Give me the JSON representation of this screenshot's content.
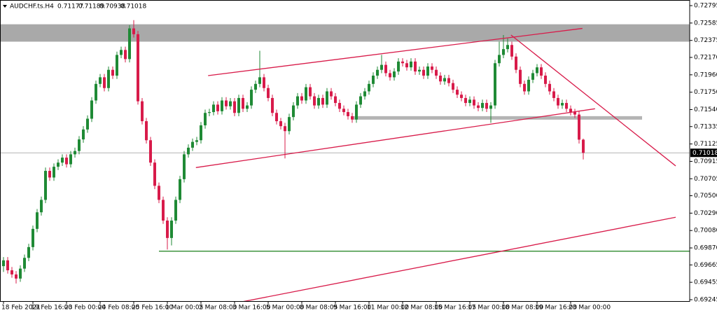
{
  "chart_data": {
    "type": "candlestick",
    "symbol": "AUDCHF.ts.H4",
    "up_color": "#1f8a35",
    "down_color": "#d81b4a",
    "line_color": "#d81b4a",
    "ylim": [
      0.69228,
      0.72863
    ],
    "yticks": [
      0.72795,
      0.72585,
      0.72375,
      {
        "value": 0.7217,
        "label": "0.72170"
      },
      {
        "value": 0.7196,
        "label": "0.71960"
      },
      {
        "value": 0.7175,
        "label": "0.71750"
      },
      {
        "value": 0.7154,
        "label": "0.71540"
      },
      0.71335,
      0.71125,
      0.70915,
      0.70705,
      {
        "value": 0.705,
        "label": "0.70500"
      },
      {
        "value": 0.7029,
        "label": "0.70290"
      },
      {
        "value": 0.7008,
        "label": "0.70080"
      },
      {
        "value": 0.6987,
        "label": "0.69870"
      },
      0.69665,
      0.69455,
      0.69245
    ],
    "categories": [
      "18 Feb 2021",
      null,
      null,
      null,
      null,
      null,
      null,
      "19 Feb 16:00",
      null,
      null,
      null,
      null,
      null,
      null,
      null,
      "23 Feb 00:00",
      null,
      null,
      null,
      null,
      null,
      null,
      null,
      "24 Feb 08:00",
      null,
      null,
      null,
      null,
      null,
      null,
      null,
      "25 Feb 16:00",
      null,
      null,
      null,
      null,
      null,
      null,
      null,
      "1 Mar 00:05",
      null,
      null,
      null,
      null,
      null,
      null,
      null,
      "2 Mar 08:00",
      null,
      null,
      null,
      null,
      null,
      null,
      null,
      "3 Mar 16:00",
      null,
      null,
      null,
      null,
      null,
      null,
      null,
      "5 Mar 00:00",
      null,
      null,
      null,
      null,
      null,
      null,
      null,
      "8 Mar 08:05",
      null,
      null,
      null,
      null,
      null,
      null,
      null,
      "9 Mar 16:00",
      null,
      null,
      null,
      null,
      null,
      null,
      null,
      "11 Mar 00:00",
      null,
      null,
      null,
      null,
      null,
      null,
      null,
      "12 Mar 08:00",
      null,
      null,
      null,
      null,
      null,
      null,
      null,
      "15 Mar 16:05",
      null,
      null,
      null,
      null,
      null,
      null,
      null,
      "17 Mar 00:00",
      null,
      null,
      null,
      null,
      null,
      null,
      null,
      "18 Mar 08:00",
      null,
      null,
      null,
      null,
      null,
      null,
      null,
      "19 Mar 16:00",
      null,
      null,
      null,
      null,
      null,
      null,
      null,
      "23 Mar 00:00",
      null,
      null,
      null
    ],
    "ohlc": [
      [
        0.6965,
        0.6976,
        0.6958,
        0.6972
      ],
      [
        0.6972,
        0.6976,
        0.6956,
        0.696
      ],
      [
        0.696,
        0.6964,
        0.6951,
        0.6955
      ],
      [
        0.6955,
        0.6959,
        0.6944,
        0.695
      ],
      [
        0.695,
        0.6966,
        0.6946,
        0.6962
      ],
      [
        0.6962,
        0.6979,
        0.6958,
        0.6975
      ],
      [
        0.6975,
        0.6992,
        0.6971,
        0.6988
      ],
      [
        0.6988,
        0.7014,
        0.6984,
        0.701
      ],
      [
        0.701,
        0.7034,
        0.7006,
        0.703
      ],
      [
        0.703,
        0.7049,
        0.7026,
        0.7045
      ],
      [
        0.7045,
        0.7084,
        0.7041,
        0.708
      ],
      [
        0.708,
        0.7084,
        0.7068,
        0.7072
      ],
      [
        0.7072,
        0.7089,
        0.7068,
        0.7085
      ],
      [
        0.7085,
        0.7094,
        0.7081,
        0.709
      ],
      [
        0.709,
        0.71,
        0.7086,
        0.7096
      ],
      [
        0.7096,
        0.71,
        0.7084,
        0.7088
      ],
      [
        0.7088,
        0.7104,
        0.7084,
        0.71
      ],
      [
        0.71,
        0.7108,
        0.7096,
        0.7104
      ],
      [
        0.7104,
        0.7122,
        0.71,
        0.7118
      ],
      [
        0.7118,
        0.7134,
        0.7114,
        0.713
      ],
      [
        0.713,
        0.7147,
        0.7126,
        0.7143
      ],
      [
        0.7143,
        0.7169,
        0.7139,
        0.7165
      ],
      [
        0.7165,
        0.7189,
        0.7161,
        0.7185
      ],
      [
        0.7185,
        0.7197,
        0.7181,
        0.7193
      ],
      [
        0.7193,
        0.7197,
        0.7176,
        0.718
      ],
      [
        0.718,
        0.7206,
        0.7176,
        0.7202
      ],
      [
        0.7202,
        0.7206,
        0.7191,
        0.7195
      ],
      [
        0.7195,
        0.7224,
        0.7191,
        0.722
      ],
      [
        0.722,
        0.723,
        0.7216,
        0.7226
      ],
      [
        0.7226,
        0.723,
        0.7211,
        0.7215
      ],
      [
        0.7215,
        0.7256,
        0.7211,
        0.7252
      ],
      [
        0.7252,
        0.7262,
        0.7241,
        0.7245
      ],
      [
        0.7245,
        0.7249,
        0.716,
        0.7164
      ],
      [
        0.7164,
        0.7168,
        0.7136,
        0.714
      ],
      [
        0.714,
        0.7144,
        0.7113,
        0.7117
      ],
      [
        0.7117,
        0.7121,
        0.7086,
        0.709
      ],
      [
        0.709,
        0.7094,
        0.7058,
        0.7062
      ],
      [
        0.7062,
        0.7066,
        0.7041,
        0.7045
      ],
      [
        0.7045,
        0.7049,
        0.7016,
        0.702
      ],
      [
        0.702,
        0.7024,
        0.6985,
        0.6999
      ],
      [
        0.6999,
        0.7024,
        0.699,
        0.702
      ],
      [
        0.702,
        0.7049,
        0.7016,
        0.7045
      ],
      [
        0.7045,
        0.7074,
        0.7041,
        0.707
      ],
      [
        0.707,
        0.7104,
        0.7066,
        0.71
      ],
      [
        0.71,
        0.7112,
        0.7096,
        0.7108
      ],
      [
        0.7108,
        0.7119,
        0.7104,
        0.7115
      ],
      [
        0.7115,
        0.7121,
        0.7111,
        0.7117
      ],
      [
        0.7117,
        0.7139,
        0.7113,
        0.7135
      ],
      [
        0.7135,
        0.7154,
        0.7131,
        0.715
      ],
      [
        0.715,
        0.7155,
        0.7146,
        0.7151
      ],
      [
        0.7151,
        0.7164,
        0.7147,
        0.716
      ],
      [
        0.716,
        0.7164,
        0.7148,
        0.7152
      ],
      [
        0.7152,
        0.7169,
        0.7148,
        0.7165
      ],
      [
        0.7165,
        0.7169,
        0.7154,
        0.7158
      ],
      [
        0.7158,
        0.7168,
        0.7154,
        0.7164
      ],
      [
        0.7164,
        0.7168,
        0.7146,
        0.715
      ],
      [
        0.715,
        0.7172,
        0.7146,
        0.7168
      ],
      [
        0.7168,
        0.7172,
        0.7151,
        0.7155
      ],
      [
        0.7155,
        0.7163,
        0.7151,
        0.7159
      ],
      [
        0.7159,
        0.7182,
        0.7155,
        0.7178
      ],
      [
        0.7178,
        0.7189,
        0.7174,
        0.7185
      ],
      [
        0.7185,
        0.7225,
        0.7181,
        0.7193
      ],
      [
        0.7193,
        0.7197,
        0.7176,
        0.718
      ],
      [
        0.718,
        0.7184,
        0.7164,
        0.7168
      ],
      [
        0.7168,
        0.7172,
        0.7146,
        0.715
      ],
      [
        0.715,
        0.7154,
        0.7136,
        0.714
      ],
      [
        0.714,
        0.7144,
        0.713,
        0.7134
      ],
      [
        0.7134,
        0.7138,
        0.7095,
        0.7128
      ],
      [
        0.7128,
        0.7149,
        0.7124,
        0.7145
      ],
      [
        0.7145,
        0.7163,
        0.7141,
        0.7159
      ],
      [
        0.7159,
        0.7174,
        0.7155,
        0.717
      ],
      [
        0.717,
        0.7174,
        0.7161,
        0.7165
      ],
      [
        0.7165,
        0.7185,
        0.7161,
        0.7181
      ],
      [
        0.7181,
        0.7185,
        0.7166,
        0.717
      ],
      [
        0.717,
        0.7174,
        0.7155,
        0.7159
      ],
      [
        0.7159,
        0.7172,
        0.7155,
        0.7168
      ],
      [
        0.7168,
        0.7172,
        0.7156,
        0.716
      ],
      [
        0.716,
        0.718,
        0.7156,
        0.7176
      ],
      [
        0.7176,
        0.718,
        0.7166,
        0.717
      ],
      [
        0.717,
        0.7174,
        0.7158,
        0.7162
      ],
      [
        0.7162,
        0.7166,
        0.7151,
        0.7155
      ],
      [
        0.7155,
        0.7159,
        0.7147,
        0.7151
      ],
      [
        0.7151,
        0.7155,
        0.7142,
        0.7146
      ],
      [
        0.7146,
        0.715,
        0.7138,
        0.7142
      ],
      [
        0.7142,
        0.7164,
        0.7138,
        0.716
      ],
      [
        0.716,
        0.7174,
        0.7156,
        0.717
      ],
      [
        0.717,
        0.718,
        0.7166,
        0.7176
      ],
      [
        0.7176,
        0.7189,
        0.7172,
        0.7185
      ],
      [
        0.7185,
        0.7199,
        0.7181,
        0.7195
      ],
      [
        0.7195,
        0.7206,
        0.7191,
        0.7202
      ],
      [
        0.7202,
        0.722,
        0.7198,
        0.7208
      ],
      [
        0.7208,
        0.7212,
        0.7194,
        0.7198
      ],
      [
        0.7198,
        0.7202,
        0.7189,
        0.7193
      ],
      [
        0.7193,
        0.7204,
        0.7189,
        0.72
      ],
      [
        0.72,
        0.7216,
        0.7196,
        0.7212
      ],
      [
        0.7212,
        0.7216,
        0.7206,
        0.721
      ],
      [
        0.721,
        0.7214,
        0.7201,
        0.7205
      ],
      [
        0.7205,
        0.7216,
        0.7201,
        0.7212
      ],
      [
        0.7212,
        0.7216,
        0.7196,
        0.72
      ],
      [
        0.72,
        0.7206,
        0.7196,
        0.7202
      ],
      [
        0.7202,
        0.7206,
        0.7191,
        0.7195
      ],
      [
        0.7195,
        0.721,
        0.7191,
        0.7206
      ],
      [
        0.7206,
        0.721,
        0.7198,
        0.7202
      ],
      [
        0.7202,
        0.7206,
        0.7191,
        0.7195
      ],
      [
        0.7195,
        0.7199,
        0.7184,
        0.7188
      ],
      [
        0.7188,
        0.7196,
        0.7184,
        0.7192
      ],
      [
        0.7192,
        0.7196,
        0.7182,
        0.7186
      ],
      [
        0.7186,
        0.719,
        0.7174,
        0.7178
      ],
      [
        0.7178,
        0.7182,
        0.7168,
        0.7172
      ],
      [
        0.7172,
        0.7176,
        0.7164,
        0.7168
      ],
      [
        0.7168,
        0.7172,
        0.7158,
        0.7162
      ],
      [
        0.7162,
        0.717,
        0.7158,
        0.7166
      ],
      [
        0.7166,
        0.717,
        0.7155,
        0.7159
      ],
      [
        0.7159,
        0.7163,
        0.7152,
        0.7156
      ],
      [
        0.7156,
        0.7166,
        0.7152,
        0.7162
      ],
      [
        0.7162,
        0.7166,
        0.7151,
        0.7155
      ],
      [
        0.7155,
        0.7163,
        0.7138,
        0.7159
      ],
      [
        0.7159,
        0.7214,
        0.7155,
        0.721
      ],
      [
        0.721,
        0.7236,
        0.7206,
        0.722
      ],
      [
        0.722,
        0.7244,
        0.7216,
        0.7227
      ],
      [
        0.7227,
        0.724,
        0.7223,
        0.7232
      ],
      [
        0.7232,
        0.7236,
        0.7214,
        0.7218
      ],
      [
        0.7218,
        0.7222,
        0.7198,
        0.7202
      ],
      [
        0.7202,
        0.7206,
        0.7181,
        0.7185
      ],
      [
        0.7185,
        0.7189,
        0.7172,
        0.7176
      ],
      [
        0.7176,
        0.7194,
        0.7172,
        0.719
      ],
      [
        0.719,
        0.7202,
        0.7186,
        0.7198
      ],
      [
        0.7198,
        0.7209,
        0.7194,
        0.7205
      ],
      [
        0.7205,
        0.7209,
        0.7191,
        0.7195
      ],
      [
        0.7195,
        0.7199,
        0.7181,
        0.7185
      ],
      [
        0.7185,
        0.7189,
        0.7172,
        0.7176
      ],
      [
        0.7176,
        0.718,
        0.7164,
        0.7168
      ],
      [
        0.7168,
        0.7172,
        0.7155,
        0.7159
      ],
      [
        0.7159,
        0.7166,
        0.7155,
        0.7162
      ],
      [
        0.7162,
        0.7166,
        0.7151,
        0.7155
      ],
      [
        0.7155,
        0.7159,
        0.7147,
        0.7151
      ],
      [
        0.7151,
        0.7155,
        0.7144,
        0.7148
      ],
      [
        0.7148,
        0.7152,
        0.7113,
        0.71177
      ],
      [
        0.71177,
        0.71189,
        0.70938,
        0.71018
      ]
    ],
    "zone": {
      "top": 0.7257,
      "bottom": 0.7236,
      "color": "#a9a9a9"
    },
    "levels": [
      {
        "price": 0.7144,
        "from": 83,
        "to": 152,
        "color": "#b4b4b4"
      },
      {
        "price": 0.6983,
        "from": 37,
        "to": 163.3,
        "color": "#1a7f1a"
      }
    ],
    "trendlines": [
      {
        "x": [
          48.7,
          137.8
        ],
        "y": [
          0.7195,
          0.7252
        ]
      },
      {
        "x": [
          45.8,
          140.8
        ],
        "y": [
          0.7084,
          0.7155
        ]
      },
      {
        "x": [
          55.8,
          160
        ],
        "y": [
          0.6921,
          0.7024
        ]
      },
      {
        "x": [
          120.8,
          160
        ],
        "y": [
          0.7244,
          0.7086
        ]
      }
    ]
  }
}
